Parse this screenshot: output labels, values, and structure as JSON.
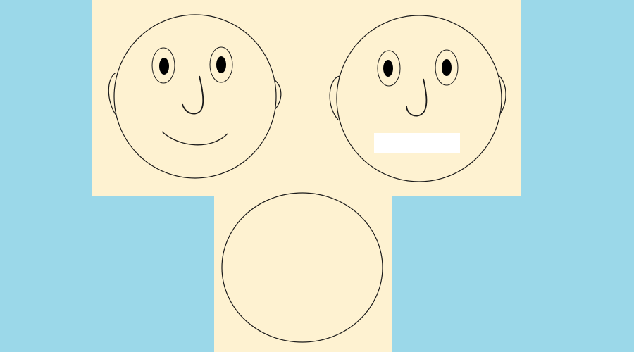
{
  "colors": {
    "background": "#9bd8e9",
    "panel": "#fef2d1",
    "outline": "#1a1a1a",
    "pupil": "#000000",
    "mouth_blank": "#ffffff"
  },
  "faces": [
    {
      "id": "face-1",
      "expression": "smiling",
      "features": [
        "head",
        "ears",
        "eyes",
        "nose",
        "mouth"
      ]
    },
    {
      "id": "face-2",
      "expression": "mouth-blank",
      "features": [
        "head",
        "ears",
        "eyes",
        "nose",
        "blank-mouth-box"
      ]
    },
    {
      "id": "face-3",
      "expression": "blank-outline",
      "features": [
        "head"
      ]
    }
  ]
}
